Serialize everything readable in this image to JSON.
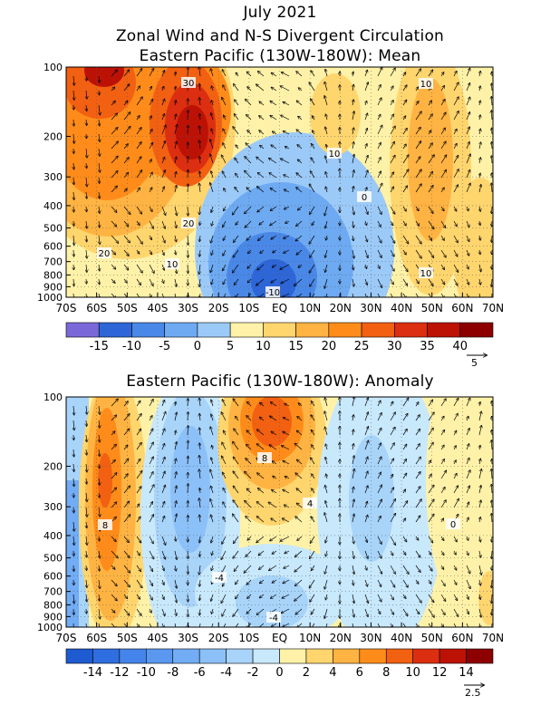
{
  "header": {
    "line1": "July 2021",
    "line2": "Zonal Wind and N-S Divergent Circulation",
    "line3": "Eastern Pacific (130W-180W): Mean"
  },
  "chart_data": [
    {
      "type": "heatmap",
      "title": "Eastern Pacific (130W-180W): Mean",
      "x_ticks": [
        "70S",
        "60S",
        "50S",
        "40S",
        "30S",
        "20S",
        "10S",
        "EQ",
        "10N",
        "20N",
        "30N",
        "40N",
        "50N",
        "60N",
        "70N"
      ],
      "y_ticks": [
        "100",
        "200",
        "300",
        "400",
        "500",
        "600",
        "700",
        "800",
        "900",
        "1000"
      ],
      "y_values": [
        100,
        200,
        300,
        400,
        500,
        600,
        700,
        800,
        900,
        1000
      ],
      "colorbar_labels": [
        "-15",
        "-10",
        "-5",
        "0",
        "5",
        "10",
        "15",
        "20",
        "25",
        "30",
        "35",
        "40"
      ],
      "colorbar_colors": [
        "#7b68d8",
        "#2e66d8",
        "#4a88e8",
        "#6eaaf2",
        "#9ccaf8",
        "#fff2a8",
        "#ffd56e",
        "#ffb342",
        "#ff8c1a",
        "#f26012",
        "#dc2e10",
        "#bc1206",
        "#8c0000"
      ],
      "contour_labels": [
        "30",
        "10",
        "10",
        "0",
        "20",
        "20",
        "10",
        "10",
        "-10"
      ],
      "vector_key": "5"
    },
    {
      "type": "heatmap",
      "title": "Eastern Pacific (130W-180W): Anomaly",
      "x_ticks": [
        "70S",
        "60S",
        "50S",
        "40S",
        "30S",
        "20S",
        "10S",
        "EQ",
        "10N",
        "20N",
        "30N",
        "40N",
        "50N",
        "60N",
        "70N"
      ],
      "y_ticks": [
        "100",
        "200",
        "300",
        "400",
        "500",
        "600",
        "700",
        "800",
        "900",
        "1000"
      ],
      "y_values": [
        100,
        200,
        300,
        400,
        500,
        600,
        700,
        800,
        900,
        1000
      ],
      "colorbar_labels": [
        "-14",
        "-12",
        "-10",
        "-8",
        "-6",
        "-4",
        "-2",
        "0",
        "2",
        "4",
        "6",
        "8",
        "10",
        "12",
        "14"
      ],
      "colorbar_colors": [
        "#1e5ad0",
        "#2f6ee0",
        "#4584ea",
        "#5a98f0",
        "#72acf4",
        "#8cc0f8",
        "#a8d4fa",
        "#c8e8fc",
        "#fff2a8",
        "#ffd56e",
        "#ffb342",
        "#ff8c1a",
        "#f26012",
        "#dc2e10",
        "#bc1206",
        "#8c0000"
      ],
      "contour_labels": [
        "8",
        "4",
        "8",
        "-4",
        "-4",
        "0"
      ],
      "vector_key": "2.5"
    }
  ]
}
